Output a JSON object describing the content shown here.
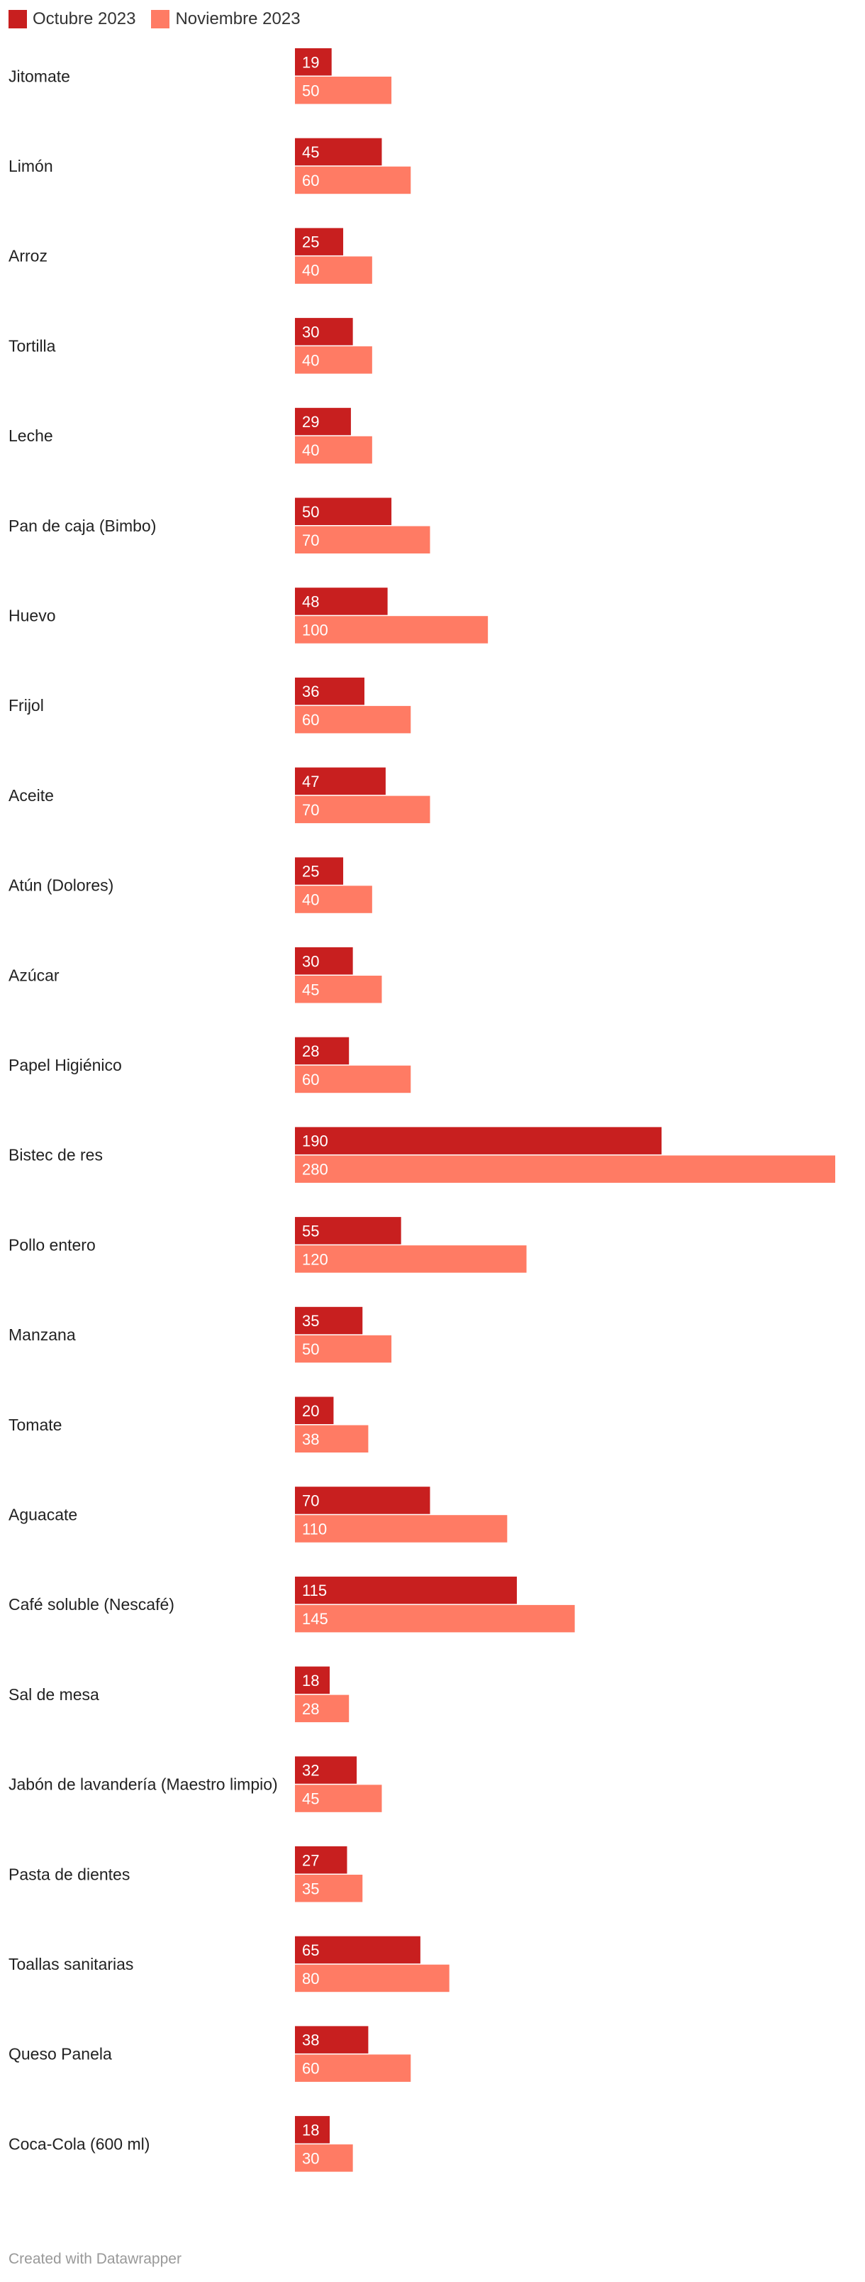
{
  "chart_data": {
    "type": "bar",
    "orientation": "horizontal",
    "grouped": true,
    "title": "",
    "xlabel": "",
    "ylabel": "",
    "xlim": [
      0,
      280
    ],
    "grid": false,
    "legend_position": "top-left",
    "categories": [
      "Jitomate",
      "Limón",
      "Arroz",
      "Tortilla",
      "Leche",
      "Pan de caja (Bimbo)",
      "Huevo",
      "Frijol",
      "Aceite",
      "Atún (Dolores)",
      "Azúcar",
      "Papel Higiénico",
      "Bistec de res",
      "Pollo entero",
      "Manzana",
      "Tomate",
      "Aguacate",
      "Café soluble (Nescafé)",
      "Sal de mesa",
      "Jabón de lavandería (Maestro limpio)",
      "Pasta de dientes",
      "Toallas sanitarias",
      "Queso Panela",
      "Coca-Cola (600 ml)"
    ],
    "series": [
      {
        "name": "Octubre 2023",
        "color": "#c81f1f",
        "values": [
          19,
          45,
          25,
          30,
          29,
          50,
          48,
          36,
          47,
          25,
          30,
          28,
          190,
          55,
          35,
          20,
          70,
          115,
          18,
          32,
          27,
          65,
          38,
          18
        ]
      },
      {
        "name": "Noviembre 2023",
        "color": "#ff7b64",
        "values": [
          50,
          60,
          40,
          40,
          40,
          70,
          100,
          60,
          70,
          40,
          45,
          60,
          280,
          120,
          50,
          38,
          110,
          145,
          28,
          45,
          35,
          80,
          60,
          30
        ]
      }
    ]
  },
  "footer": {
    "credit": "Created with Datawrapper"
  }
}
